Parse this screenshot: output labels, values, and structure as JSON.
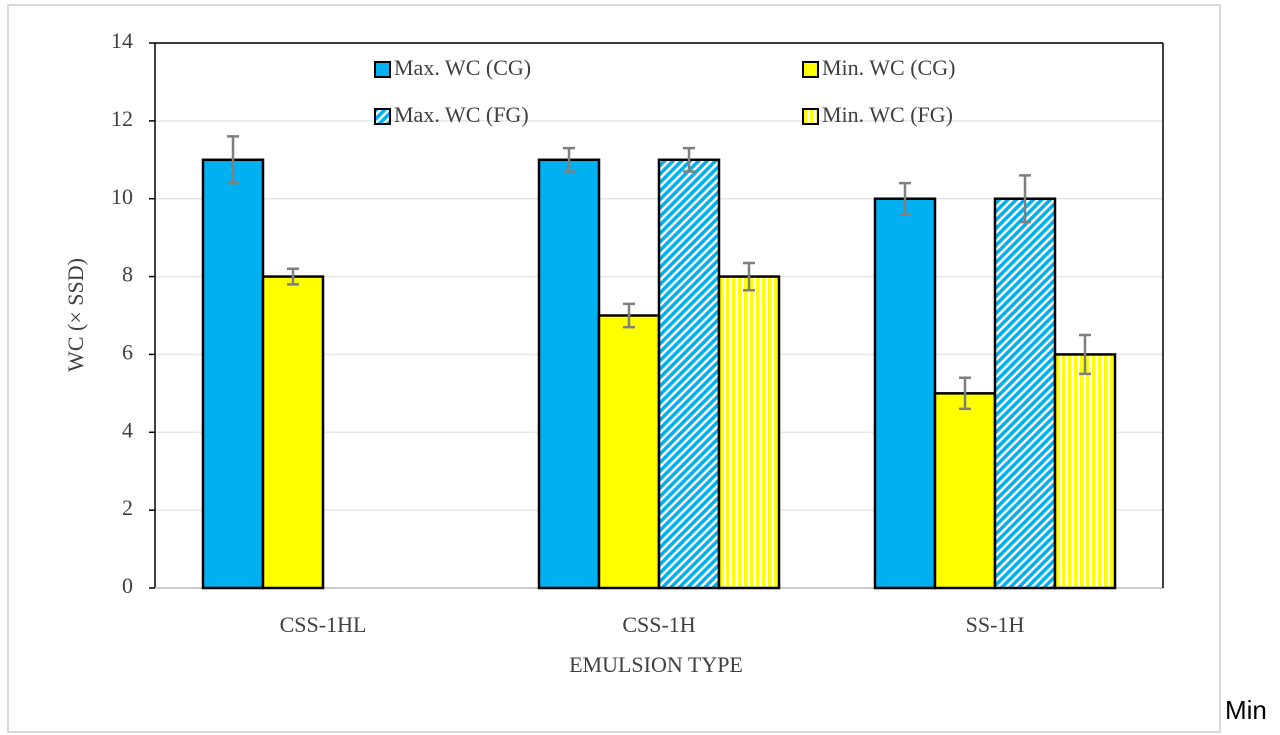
{
  "chart_data": {
    "type": "bar",
    "y_label": "WC (× SSD)",
    "x_label": "EMULSION TYPE",
    "categories": [
      "CSS-1HL",
      "CSS-1H",
      "SS-1H"
    ],
    "series": [
      {
        "name": "Max. WC (CG)",
        "color": "#00b0f0",
        "pattern": "solid",
        "values": [
          11,
          11,
          10
        ],
        "errors": [
          0.6,
          0.3,
          0.4
        ]
      },
      {
        "name": "Min. WC (CG)",
        "color": "#ffff00",
        "pattern": "solid",
        "values": [
          8,
          7,
          5
        ],
        "errors": [
          0.2,
          0.3,
          0.4
        ]
      },
      {
        "name": "Max. WC (FG)",
        "color": "#00b0f0",
        "pattern": "diagonal",
        "values": [
          null,
          11,
          10
        ],
        "errors": [
          null,
          0.3,
          0.6
        ]
      },
      {
        "name": "Min. WC (FG)",
        "color": "#ffff00",
        "pattern": "vertical",
        "values": [
          null,
          8,
          6
        ],
        "errors": [
          null,
          0.35,
          0.5
        ]
      }
    ],
    "ylim": [
      0,
      14
    ],
    "yticks": [
      0,
      2,
      4,
      6,
      8,
      10,
      12,
      14
    ],
    "grid": true
  },
  "trailing_text": "Min"
}
